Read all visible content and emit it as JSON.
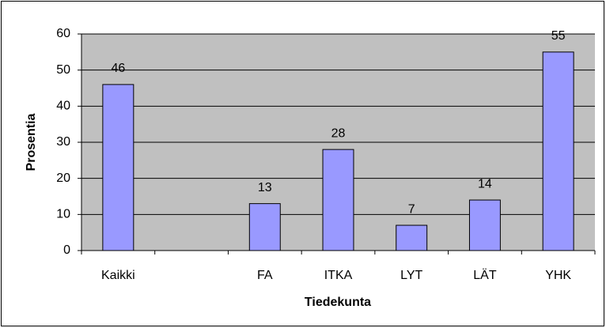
{
  "chart_data": {
    "type": "bar",
    "categories": [
      "Kaikki",
      null,
      "FA",
      "ITKA",
      "LYT",
      "LÄT",
      "YHK"
    ],
    "values": [
      46,
      null,
      13,
      28,
      7,
      14,
      55
    ],
    "color": "#9999ff",
    "ylim": [
      0,
      60
    ],
    "yticks": [
      0,
      10,
      20,
      30,
      40,
      50,
      60
    ],
    "grid": true,
    "x_label": "Tiedekunta",
    "y_label": "Prosentia"
  }
}
